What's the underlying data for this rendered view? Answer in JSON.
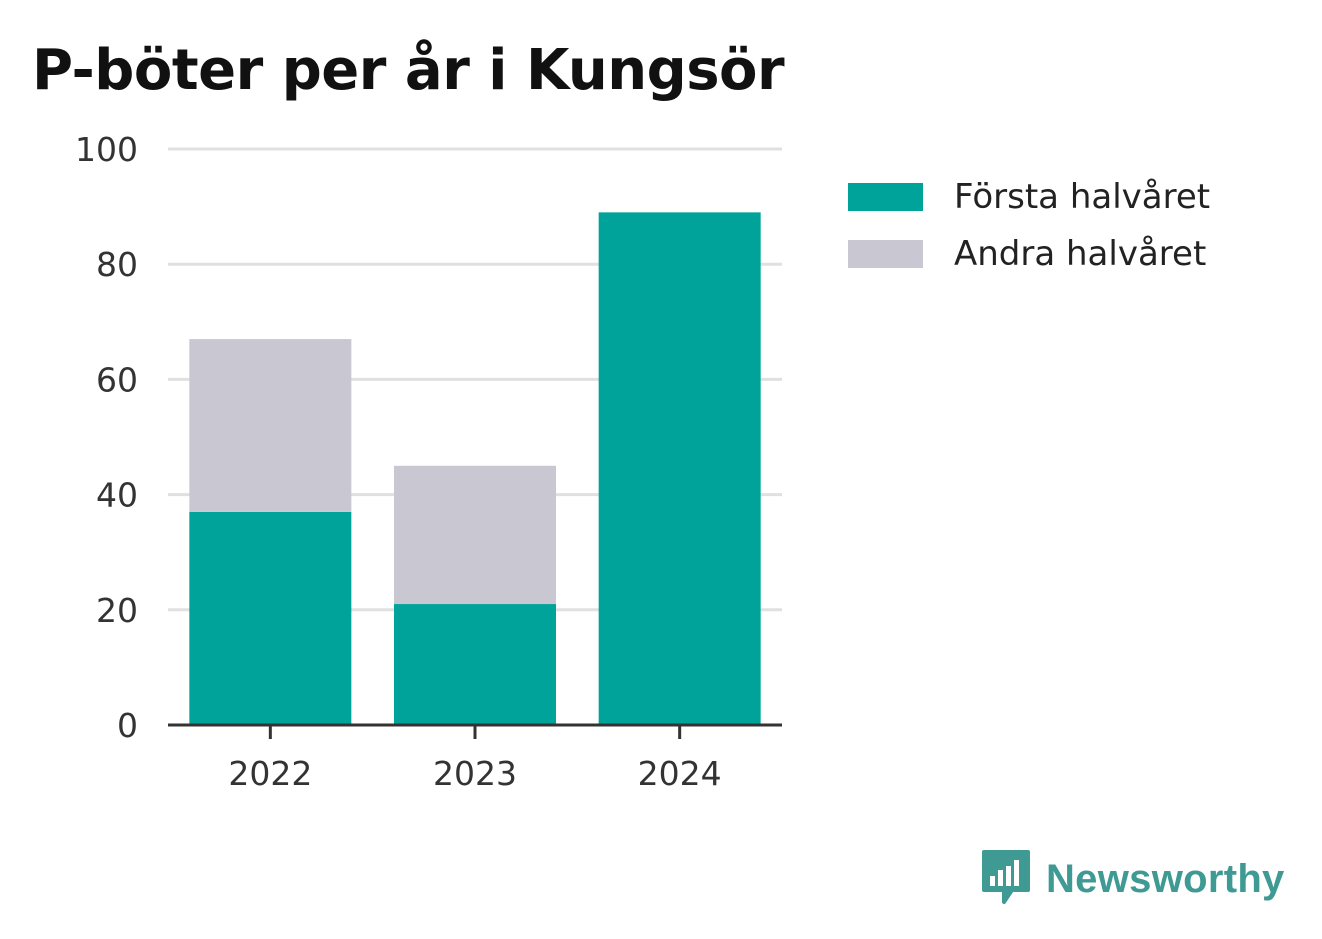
{
  "title": "P-böter per år i Kungsör",
  "colors": {
    "first_half": "#00a39a",
    "second_half": "#c8c7d2",
    "brand": "#3f9a94"
  },
  "chart_data": {
    "type": "bar",
    "stacked": true,
    "title": "P-böter per år i Kungsör",
    "xlabel": "",
    "ylabel": "",
    "categories": [
      "2022",
      "2023",
      "2024"
    ],
    "series": [
      {
        "name": "Första halvåret",
        "color": "#00a39a",
        "values": [
          37,
          21,
          89
        ]
      },
      {
        "name": "Andra halvåret",
        "color": "#c8c7d2",
        "values": [
          30,
          24,
          0
        ]
      }
    ],
    "ylim": [
      0,
      100
    ],
    "yticks": [
      "0",
      "20",
      "40",
      "60",
      "80",
      "100"
    ],
    "grid": true,
    "legend": "right"
  },
  "brand": {
    "name": "Newsworthy",
    "icon": "newsworthy-logo-icon"
  }
}
